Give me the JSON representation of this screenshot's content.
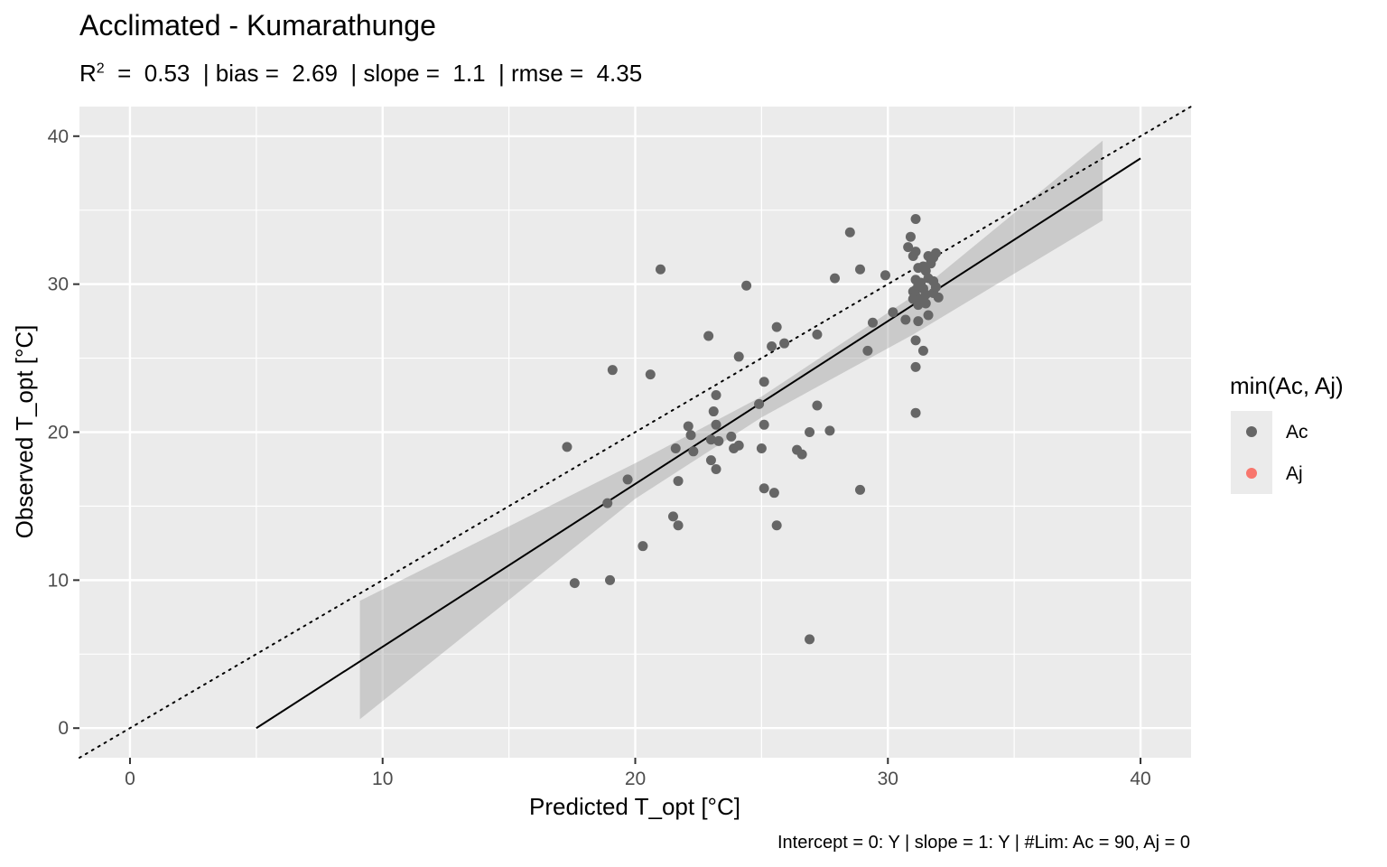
{
  "chart_data": {
    "type": "scatter",
    "title": "Acclimated - Kumarathunge",
    "subtitle": {
      "r2_label": "R",
      "r2_sup": "2",
      "rest": "  =  0.53  | bias =  2.69  | slope =  1.1  | rmse =  4.35"
    },
    "caption": "Intercept = 0: Y | slope = 1: Y | #Lim: Ac = 90, Aj = 0",
    "xlabel": "Predicted T_opt [°C]",
    "ylabel": "Observed T_opt [°C]",
    "xlim": [
      -2,
      42
    ],
    "ylim": [
      -2,
      42
    ],
    "x_ticks": [
      0,
      10,
      20,
      30,
      40
    ],
    "y_ticks": [
      0,
      10,
      20,
      30,
      40
    ],
    "x_tick_labels": [
      "0",
      "10",
      "20",
      "30",
      "40"
    ],
    "y_tick_labels": [
      "0",
      "10",
      "20",
      "30",
      "40"
    ],
    "grid": true,
    "legend": {
      "title": "min(Ac, Aj)",
      "position": "right",
      "entries": [
        {
          "label": "Ac",
          "color": "#666666"
        },
        {
          "label": "Aj",
          "color": "#F8766D"
        }
      ]
    },
    "reference_line": {
      "type": "identity",
      "style": "dotted",
      "slope": 1,
      "intercept": 0
    },
    "fit_line": {
      "slope": 1.1,
      "intercept": -5.5,
      "x_range": [
        5,
        40
      ]
    },
    "confidence_band": {
      "x": [
        9.1,
        20,
        25,
        31,
        38.5
      ],
      "lower": [
        0.6,
        15.5,
        21.0,
        26.6,
        34.3
      ],
      "upper": [
        8.6,
        17.9,
        22.4,
        29.2,
        39.7
      ]
    },
    "series": [
      {
        "name": "Ac",
        "color": "#666666",
        "points": [
          [
            17.3,
            19.0
          ],
          [
            17.6,
            9.8
          ],
          [
            18.9,
            15.2
          ],
          [
            19.0,
            10.0
          ],
          [
            19.1,
            24.2
          ],
          [
            19.7,
            16.8
          ],
          [
            20.3,
            12.3
          ],
          [
            20.6,
            23.9
          ],
          [
            21.0,
            31.0
          ],
          [
            21.5,
            14.3
          ],
          [
            21.6,
            18.9
          ],
          [
            21.7,
            16.7
          ],
          [
            21.7,
            13.7
          ],
          [
            22.1,
            20.4
          ],
          [
            22.2,
            19.8
          ],
          [
            22.3,
            18.7
          ],
          [
            22.9,
            26.5
          ],
          [
            23.0,
            19.5
          ],
          [
            23.0,
            18.1
          ],
          [
            23.1,
            21.4
          ],
          [
            23.2,
            22.5
          ],
          [
            23.2,
            20.5
          ],
          [
            23.2,
            17.5
          ],
          [
            23.3,
            19.4
          ],
          [
            23.8,
            19.7
          ],
          [
            23.9,
            18.9
          ],
          [
            24.1,
            25.1
          ],
          [
            24.1,
            19.1
          ],
          [
            24.4,
            29.9
          ],
          [
            24.9,
            21.9
          ],
          [
            25.0,
            18.9
          ],
          [
            25.1,
            23.4
          ],
          [
            25.1,
            20.5
          ],
          [
            25.1,
            16.2
          ],
          [
            25.4,
            25.8
          ],
          [
            25.5,
            15.9
          ],
          [
            25.6,
            27.1
          ],
          [
            25.6,
            13.7
          ],
          [
            25.9,
            26.0
          ],
          [
            26.4,
            18.8
          ],
          [
            26.6,
            18.5
          ],
          [
            26.9,
            20.0
          ],
          [
            26.9,
            6.0
          ],
          [
            27.2,
            26.6
          ],
          [
            27.2,
            21.8
          ],
          [
            27.7,
            20.1
          ],
          [
            27.9,
            30.4
          ],
          [
            28.5,
            33.5
          ],
          [
            28.9,
            31.0
          ],
          [
            28.9,
            16.1
          ],
          [
            29.2,
            25.5
          ],
          [
            29.4,
            27.4
          ],
          [
            29.9,
            30.6
          ],
          [
            30.2,
            28.1
          ],
          [
            30.7,
            27.6
          ],
          [
            30.8,
            32.5
          ],
          [
            30.9,
            33.2
          ],
          [
            31.0,
            31.9
          ],
          [
            31.0,
            29.5
          ],
          [
            31.0,
            29.0
          ],
          [
            31.1,
            34.4
          ],
          [
            31.1,
            32.2
          ],
          [
            31.1,
            30.3
          ],
          [
            31.1,
            29.6
          ],
          [
            31.1,
            29.2
          ],
          [
            31.1,
            26.2
          ],
          [
            31.1,
            24.4
          ],
          [
            31.1,
            21.3
          ],
          [
            31.2,
            31.1
          ],
          [
            31.2,
            29.9
          ],
          [
            31.2,
            28.6
          ],
          [
            31.2,
            27.5
          ],
          [
            31.3,
            30.1
          ],
          [
            31.3,
            29.0
          ],
          [
            31.4,
            31.2
          ],
          [
            31.4,
            29.7
          ],
          [
            31.4,
            25.5
          ],
          [
            31.5,
            30.9
          ],
          [
            31.5,
            29.3
          ],
          [
            31.5,
            28.7
          ],
          [
            31.6,
            31.9
          ],
          [
            31.6,
            30.4
          ],
          [
            31.6,
            27.9
          ],
          [
            31.7,
            31.4
          ],
          [
            31.8,
            31.8
          ],
          [
            31.8,
            30.2
          ],
          [
            31.8,
            29.4
          ],
          [
            31.9,
            32.1
          ],
          [
            31.9,
            29.8
          ],
          [
            32.0,
            29.1
          ]
        ]
      },
      {
        "name": "Aj",
        "color": "#F8766D",
        "points": []
      }
    ]
  }
}
